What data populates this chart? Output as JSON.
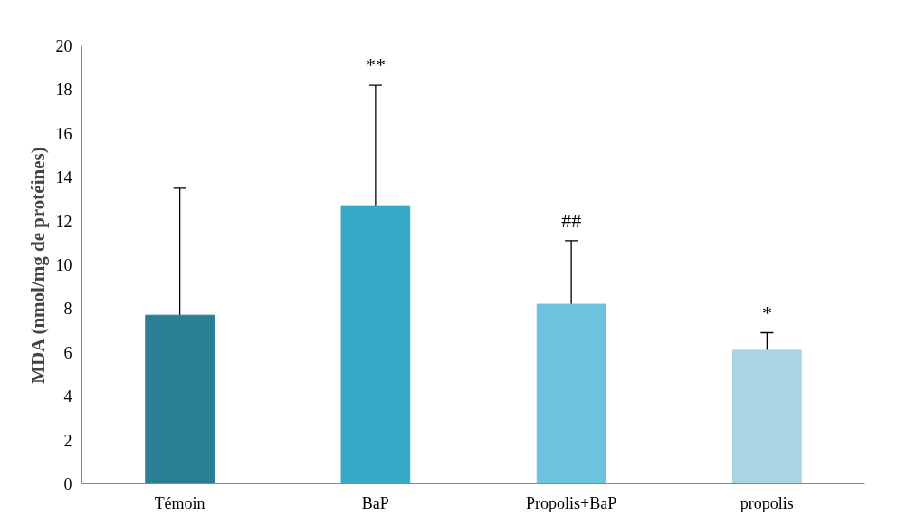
{
  "chart_data": {
    "type": "bar",
    "ylabel": "MDA (nmol/mg de protéines)",
    "categories": [
      "Témoin",
      "BaP",
      "Propolis+BaP",
      "propolis"
    ],
    "values": [
      7.7,
      12.7,
      8.2,
      6.1
    ],
    "colors": [
      "#2a7f95",
      "#36a9c6",
      "#6cc3dd",
      "#a9d5e3"
    ],
    "errors": [
      [
        7.7,
        13.5
      ],
      [
        12.7,
        18.2
      ],
      [
        8.2,
        11.1
      ],
      [
        6.1,
        6.9
      ]
    ],
    "ylim": [
      0,
      20
    ],
    "yticks": [
      0,
      2,
      4,
      6,
      8,
      10,
      12,
      14,
      16,
      18,
      20
    ],
    "grid": false,
    "annotations": [
      {
        "text": "**",
        "x": "BaP",
        "y": 18.2
      },
      {
        "text": "##",
        "x": "Propolis+BaP",
        "y": 11.1
      },
      {
        "text": "*",
        "x": "propolis",
        "y": 6.9
      }
    ]
  }
}
